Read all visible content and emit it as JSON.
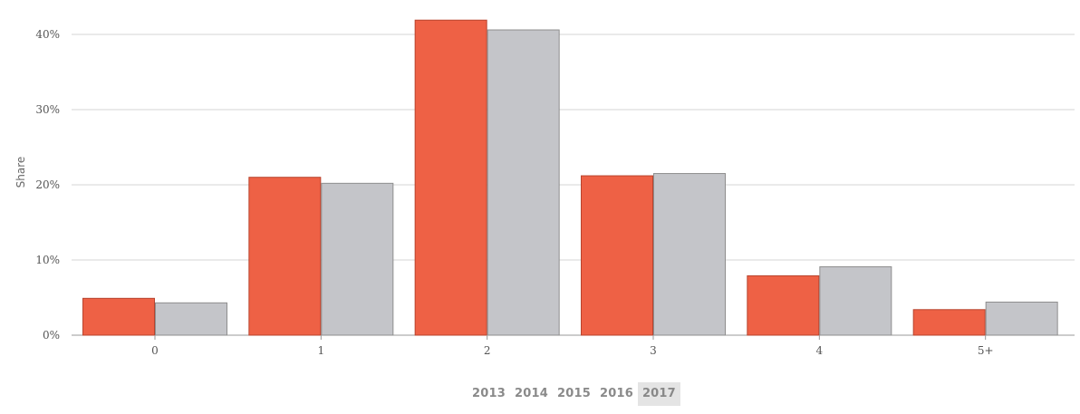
{
  "chart_data": {
    "type": "bar",
    "ylabel": "Share",
    "xlabel": "",
    "categories": [
      "0",
      "1",
      "2",
      "3",
      "4",
      "5+"
    ],
    "y_ticks": [
      "0%",
      "10%",
      "20%",
      "30%",
      "40%"
    ],
    "ylim": [
      0,
      40
    ],
    "grid": true,
    "series": [
      {
        "color": "#ee6145",
        "values": [
          4.9,
          21.0,
          41.9,
          21.2,
          7.9,
          3.4
        ]
      },
      {
        "color": "#c4c5c9",
        "values": [
          4.3,
          20.2,
          40.6,
          21.5,
          9.1,
          4.4
        ]
      }
    ]
  },
  "year_selector": {
    "years": [
      "2013",
      "2014",
      "2015",
      "2016",
      "2017"
    ],
    "selected": "2017"
  },
  "colors": {
    "gridline": "#d4d4d4",
    "axis": "#999999",
    "bar_stroke_red": "#b8442e",
    "bar_stroke_grey": "#8e8e8e",
    "selected_bg": "#e4e4e4"
  }
}
